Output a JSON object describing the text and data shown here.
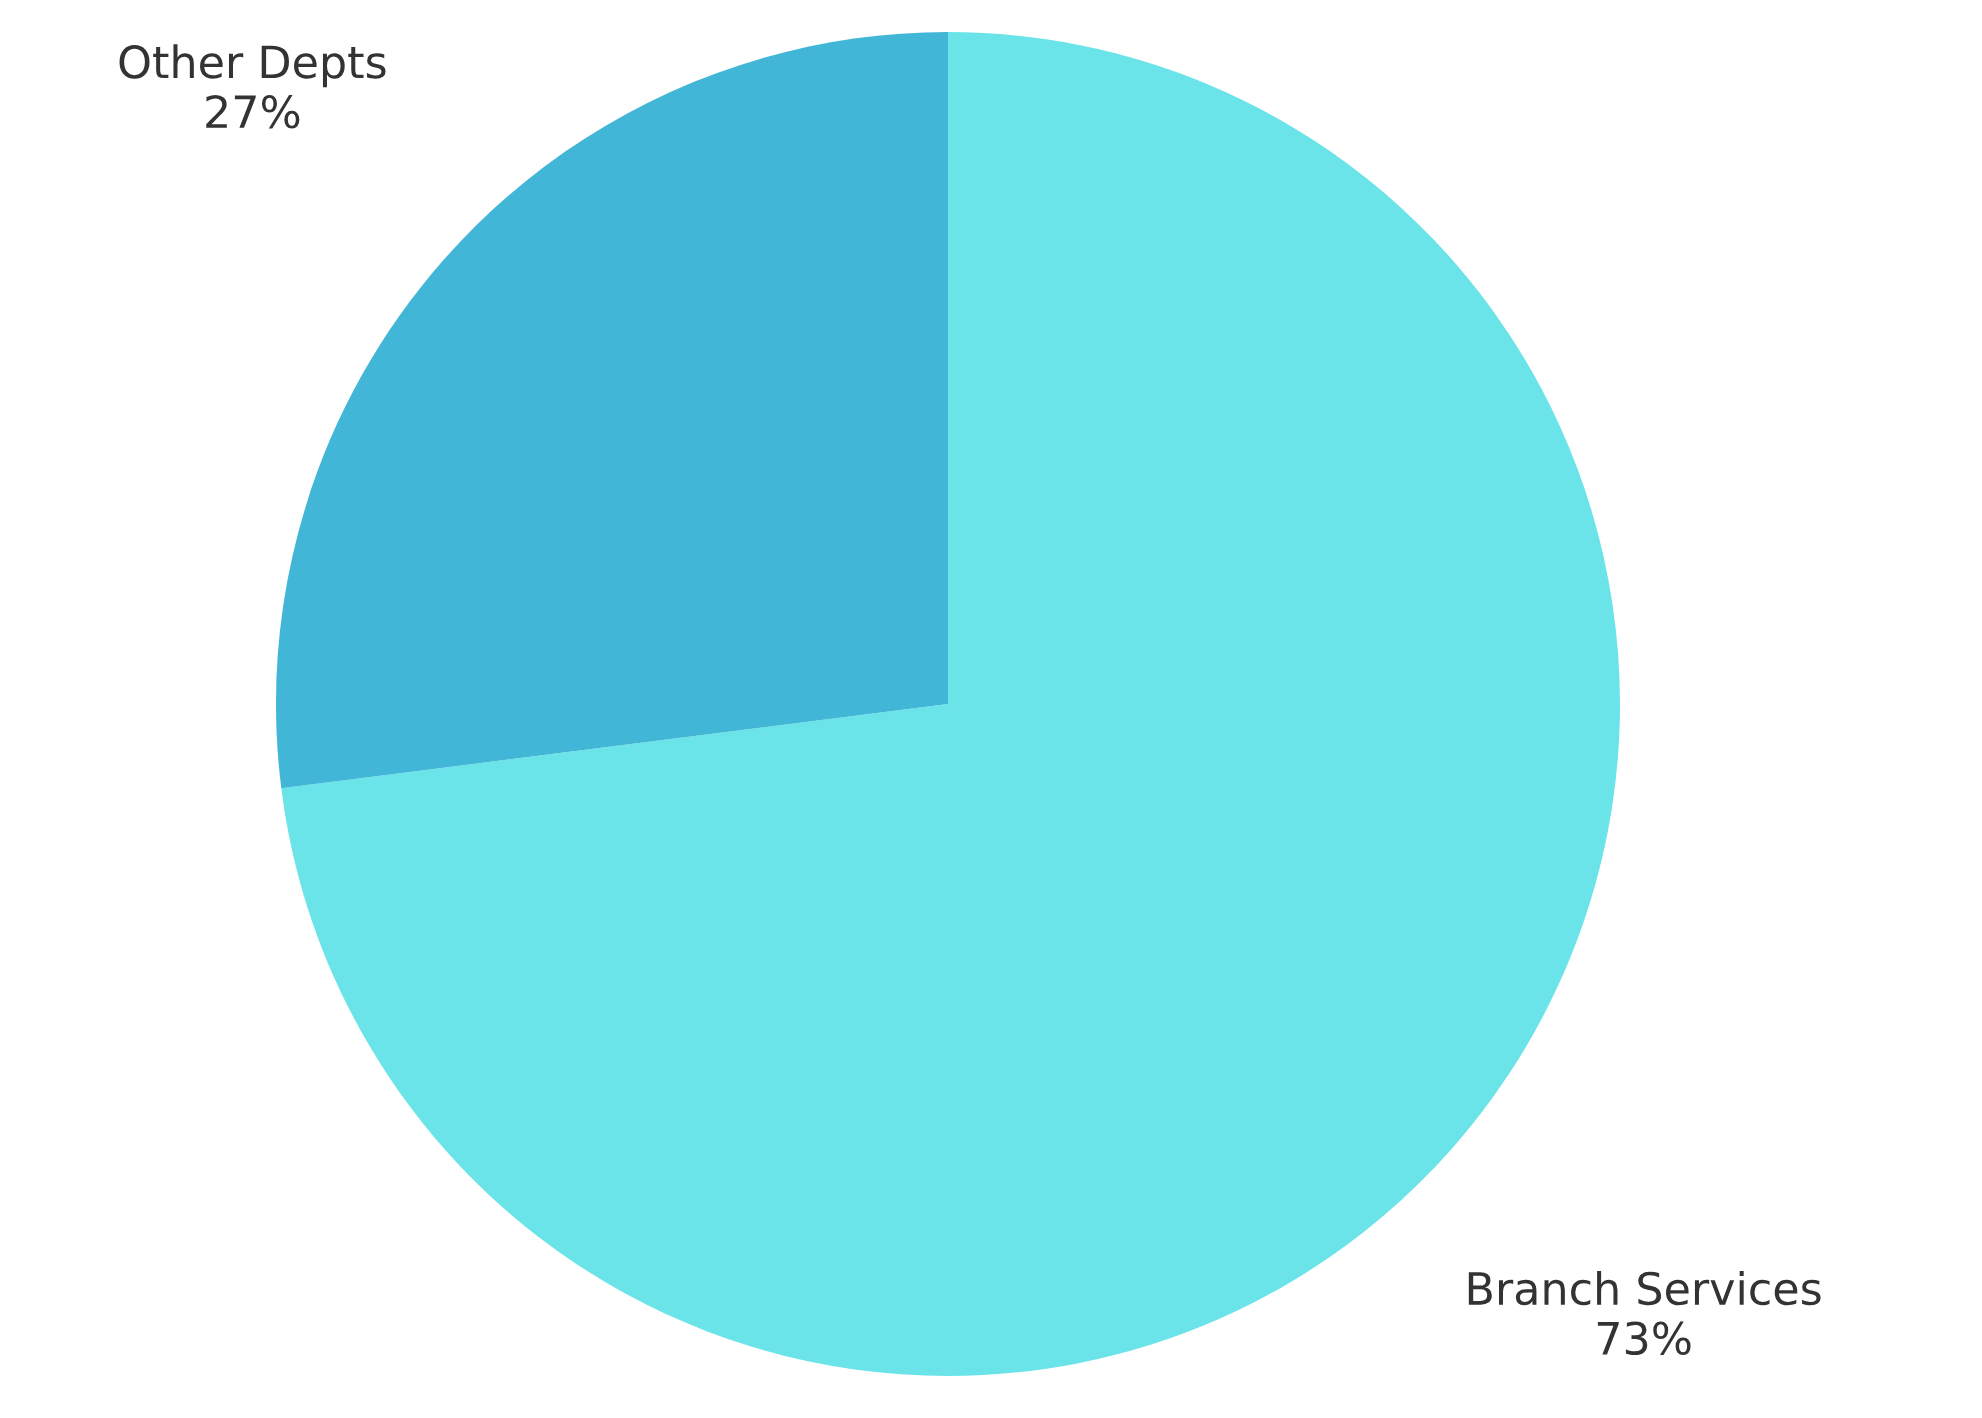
{
  "chart_data": {
    "type": "pie",
    "categories": [
      "Branch Services",
      "Other Depts"
    ],
    "values": [
      73,
      27
    ],
    "value_labels": [
      "73%",
      "27%"
    ],
    "colors": [
      "#6ae4e8",
      "#42b6d6"
    ],
    "legend": false
  }
}
